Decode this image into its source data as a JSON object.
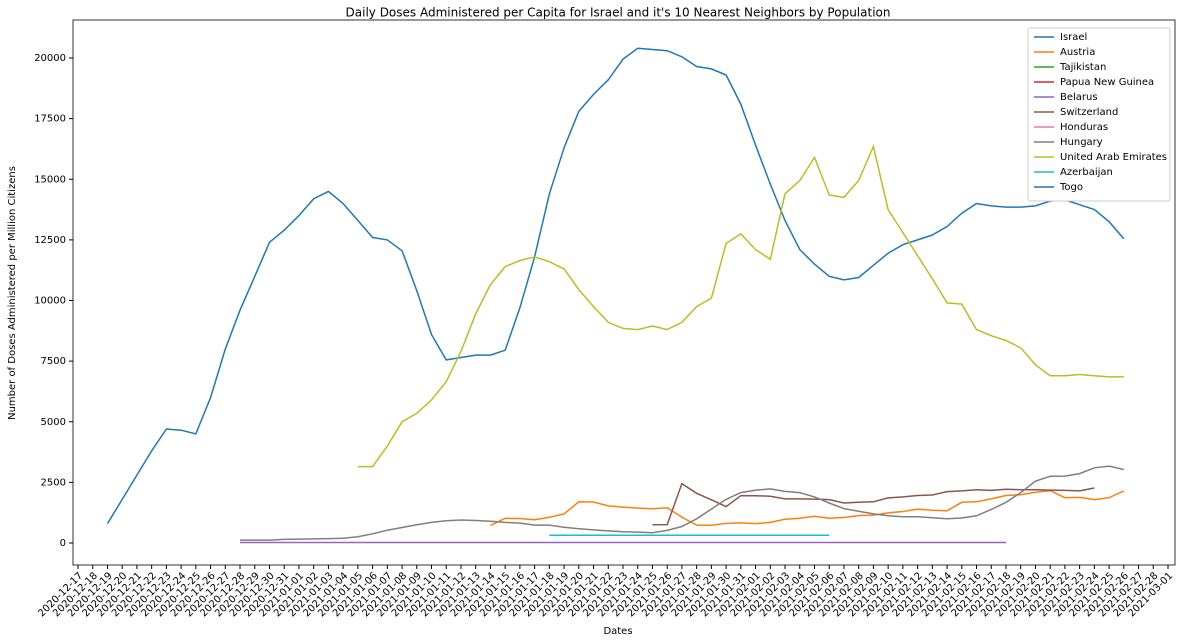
{
  "chart_data": {
    "type": "line",
    "title": "Daily Doses Administered per Capita for Israel and it's 10 Nearest Neighbors by Population",
    "x_label": "Dates",
    "y_label": "Number of Doses Administered per Million Citizens",
    "x": [
      "2020-12-17",
      "2020-12-18",
      "2020-12-19",
      "2020-12-20",
      "2020-12-21",
      "2020-12-22",
      "2020-12-23",
      "2020-12-24",
      "2020-12-25",
      "2020-12-26",
      "2020-12-27",
      "2020-12-28",
      "2020-12-29",
      "2020-12-30",
      "2020-12-31",
      "2021-01-01",
      "2021-01-02",
      "2021-01-03",
      "2021-01-04",
      "2021-01-05",
      "2021-01-06",
      "2021-01-07",
      "2021-01-08",
      "2021-01-09",
      "2021-01-10",
      "2021-01-11",
      "2021-01-12",
      "2021-01-13",
      "2021-01-14",
      "2021-01-15",
      "2021-01-16",
      "2021-01-17",
      "2021-01-18",
      "2021-01-19",
      "2021-01-20",
      "2021-01-21",
      "2021-01-22",
      "2021-01-23",
      "2021-01-24",
      "2021-01-25",
      "2021-01-26",
      "2021-01-27",
      "2021-01-28",
      "2021-01-29",
      "2021-01-30",
      "2021-01-31",
      "2021-02-01",
      "2021-02-02",
      "2021-02-03",
      "2021-02-04",
      "2021-02-05",
      "2021-02-06",
      "2021-02-07",
      "2021-02-08",
      "2021-02-09",
      "2021-02-10",
      "2021-02-11",
      "2021-02-12",
      "2021-02-13",
      "2021-02-14",
      "2021-02-15",
      "2021-02-16",
      "2021-02-17",
      "2021-02-18",
      "2021-02-19",
      "2021-02-20",
      "2021-02-21",
      "2021-02-22",
      "2021-02-23",
      "2021-02-24",
      "2021-02-25",
      "2021-02-26",
      "2021-02-27",
      "2021-02-28",
      "2021-03-01"
    ],
    "ylim": [
      -907,
      21567
    ],
    "yticks": [
      0,
      2500,
      5000,
      7500,
      10000,
      12500,
      15000,
      17500,
      20000
    ],
    "legend": "upper right",
    "series": [
      {
        "name": "Israel",
        "color": "#1f77b4",
        "values": [
          null,
          null,
          800,
          1800,
          2800,
          3800,
          4700,
          4650,
          4500,
          6000,
          8000,
          9600,
          11000,
          12400,
          12900,
          13500,
          14200,
          14500,
          14000,
          13300,
          12600,
          12500,
          12050,
          10400,
          8600,
          7550,
          7650,
          7750,
          7750,
          7950,
          9700,
          11800,
          14400,
          16300,
          17800,
          18500,
          19100,
          19950,
          20400,
          20350,
          20300,
          20050,
          19650,
          19550,
          19300,
          18100,
          16400,
          14800,
          13300,
          12100,
          11500,
          11000,
          10850,
          10950,
          11450,
          11950,
          12300,
          12500,
          12700,
          13050,
          13600,
          14000,
          13900,
          13850,
          13850,
          13900,
          14100,
          14150,
          13950,
          13750,
          13250,
          12550,
          null,
          null,
          null
        ]
      },
      {
        "name": "Austria",
        "color": "#ff7f0e",
        "values": [
          null,
          null,
          null,
          null,
          null,
          null,
          null,
          null,
          null,
          null,
          null,
          null,
          null,
          null,
          null,
          null,
          null,
          null,
          null,
          null,
          null,
          null,
          null,
          null,
          null,
          null,
          null,
          null,
          720,
          1020,
          1010,
          960,
          1060,
          1200,
          1700,
          1690,
          1530,
          1480,
          1440,
          1410,
          1450,
          1070,
          740,
          730,
          810,
          830,
          800,
          850,
          980,
          1020,
          1100,
          1020,
          1050,
          1130,
          1150,
          1240,
          1300,
          1400,
          1350,
          1330,
          1680,
          1700,
          1820,
          1960,
          1990,
          2090,
          2160,
          1870,
          1880,
          1790,
          1870,
          2150,
          null,
          null,
          null
        ]
      },
      {
        "name": "Tajikistan",
        "color": "#2ca02c",
        "values": [
          null,
          null,
          null,
          null,
          null,
          null,
          null,
          null,
          null,
          null,
          null,
          null,
          null,
          null,
          null,
          null,
          null,
          null,
          null,
          null,
          null,
          null,
          null,
          null,
          null,
          null,
          null,
          null,
          null,
          null,
          null,
          null,
          null,
          null,
          null,
          null,
          null,
          null,
          null,
          null,
          null,
          null,
          null,
          null,
          null,
          null,
          null,
          null,
          null,
          null,
          null,
          null,
          null,
          null,
          null,
          null,
          null,
          null,
          null,
          null,
          null,
          null,
          null,
          null,
          null,
          null,
          null,
          null,
          null,
          null,
          null,
          null,
          null,
          null,
          null
        ]
      },
      {
        "name": "Papua New Guinea",
        "color": "#d62728",
        "values": [
          null,
          null,
          null,
          null,
          null,
          null,
          null,
          null,
          null,
          null,
          null,
          null,
          null,
          null,
          null,
          null,
          null,
          null,
          null,
          null,
          null,
          null,
          null,
          null,
          null,
          null,
          null,
          null,
          null,
          null,
          null,
          null,
          null,
          null,
          null,
          null,
          null,
          null,
          null,
          null,
          null,
          null,
          null,
          null,
          null,
          null,
          null,
          null,
          null,
          null,
          null,
          null,
          null,
          null,
          null,
          null,
          null,
          null,
          null,
          null,
          null,
          null,
          null,
          null,
          null,
          null,
          null,
          null,
          null,
          null,
          null,
          null,
          null,
          null,
          null
        ]
      },
      {
        "name": "Belarus",
        "color": "#9467bd",
        "values": [
          null,
          null,
          null,
          null,
          null,
          null,
          null,
          null,
          null,
          null,
          null,
          20,
          20,
          20,
          20,
          20,
          20,
          20,
          20,
          20,
          20,
          20,
          20,
          20,
          20,
          20,
          20,
          20,
          20,
          20,
          20,
          20,
          20,
          20,
          20,
          20,
          20,
          20,
          20,
          20,
          20,
          20,
          20,
          20,
          20,
          20,
          20,
          20,
          20,
          20,
          20,
          20,
          20,
          20,
          20,
          20,
          20,
          20,
          20,
          20,
          20,
          20,
          20,
          20,
          null,
          null,
          null,
          null,
          null,
          null,
          null,
          null,
          null,
          null,
          null
        ]
      },
      {
        "name": "Switzerland",
        "color": "#8c564b",
        "values": [
          null,
          null,
          null,
          null,
          null,
          null,
          null,
          null,
          null,
          null,
          null,
          null,
          null,
          null,
          null,
          null,
          null,
          null,
          null,
          null,
          null,
          null,
          null,
          null,
          null,
          null,
          null,
          null,
          null,
          null,
          null,
          null,
          null,
          null,
          null,
          null,
          null,
          null,
          null,
          750,
          760,
          2450,
          2050,
          1780,
          1500,
          1950,
          1950,
          1930,
          1820,
          1820,
          1810,
          1790,
          1650,
          1680,
          1700,
          1860,
          1900,
          1960,
          1980,
          2120,
          2150,
          2200,
          2170,
          2220,
          2200,
          2200,
          2180,
          2170,
          2150,
          2270,
          null,
          null,
          null,
          null,
          null
        ]
      },
      {
        "name": "Honduras",
        "color": "#e377c2",
        "values": [
          null,
          null,
          null,
          null,
          null,
          null,
          null,
          null,
          null,
          null,
          null,
          null,
          null,
          null,
          null,
          null,
          null,
          null,
          null,
          null,
          null,
          null,
          null,
          null,
          null,
          null,
          null,
          null,
          null,
          null,
          null,
          null,
          null,
          null,
          null,
          null,
          null,
          null,
          null,
          null,
          null,
          null,
          null,
          null,
          null,
          null,
          null,
          null,
          null,
          null,
          null,
          null,
          null,
          null,
          null,
          null,
          null,
          null,
          null,
          null,
          null,
          null,
          null,
          null,
          null,
          null,
          null,
          null,
          null,
          null,
          null,
          null,
          null,
          null,
          null
        ]
      },
      {
        "name": "Hungary",
        "color": "#7f7f7f",
        "values": [
          null,
          null,
          null,
          null,
          null,
          null,
          null,
          null,
          null,
          null,
          null,
          120,
          120,
          120,
          150,
          160,
          170,
          180,
          200,
          260,
          380,
          530,
          640,
          750,
          850,
          920,
          950,
          930,
          900,
          850,
          820,
          740,
          740,
          650,
          590,
          540,
          500,
          460,
          450,
          420,
          520,
          680,
          1000,
          1400,
          1800,
          2080,
          2180,
          2230,
          2130,
          2080,
          1900,
          1650,
          1420,
          1310,
          1200,
          1120,
          1080,
          1080,
          1040,
          1000,
          1030,
          1120,
          1380,
          1680,
          2080,
          2550,
          2750,
          2760,
          2860,
          3100,
          3170,
          3030,
          null,
          null,
          null
        ]
      },
      {
        "name": "United Arab Emirates",
        "color": "#bcbd22",
        "values": [
          null,
          null,
          null,
          null,
          null,
          null,
          null,
          null,
          null,
          null,
          null,
          null,
          null,
          null,
          null,
          null,
          null,
          null,
          null,
          3150,
          3150,
          4000,
          5000,
          5350,
          5900,
          6650,
          7900,
          9450,
          10650,
          11400,
          11650,
          11800,
          11600,
          11300,
          10450,
          9750,
          9100,
          8850,
          8800,
          8950,
          8800,
          9100,
          9750,
          10100,
          12350,
          12750,
          12100,
          11700,
          14400,
          14950,
          15900,
          14350,
          14250,
          14950,
          16350,
          13750,
          12800,
          11850,
          10900,
          9900,
          9850,
          8800,
          8550,
          8350,
          8050,
          7350,
          6900,
          6900,
          6950,
          6900,
          6850,
          6850,
          null,
          null,
          null
        ]
      },
      {
        "name": "Azerbaijan",
        "color": "#17becf",
        "values": [
          null,
          null,
          null,
          null,
          null,
          null,
          null,
          null,
          null,
          null,
          null,
          null,
          null,
          null,
          null,
          null,
          null,
          null,
          null,
          null,
          null,
          null,
          null,
          null,
          null,
          null,
          null,
          null,
          null,
          null,
          null,
          null,
          320,
          320,
          320,
          320,
          320,
          320,
          320,
          320,
          320,
          320,
          320,
          320,
          320,
          320,
          320,
          320,
          320,
          320,
          320,
          320,
          null,
          null,
          null,
          null,
          null,
          null,
          null,
          null,
          null,
          null,
          null,
          null,
          null,
          null,
          null,
          null,
          null,
          null,
          null,
          null,
          null,
          null,
          null
        ]
      },
      {
        "name": "Togo",
        "color": "#1f77b4",
        "values": [
          null,
          null,
          null,
          null,
          null,
          null,
          null,
          null,
          null,
          null,
          null,
          null,
          null,
          null,
          null,
          null,
          null,
          null,
          null,
          null,
          null,
          null,
          null,
          null,
          null,
          null,
          null,
          null,
          null,
          null,
          null,
          null,
          null,
          null,
          null,
          null,
          null,
          null,
          null,
          null,
          null,
          null,
          null,
          null,
          null,
          null,
          null,
          null,
          null,
          null,
          null,
          null,
          null,
          null,
          null,
          null,
          null,
          null,
          null,
          null,
          null,
          null,
          null,
          null,
          null,
          null,
          null,
          null,
          null,
          null,
          null,
          null,
          null,
          null,
          null
        ]
      }
    ]
  }
}
